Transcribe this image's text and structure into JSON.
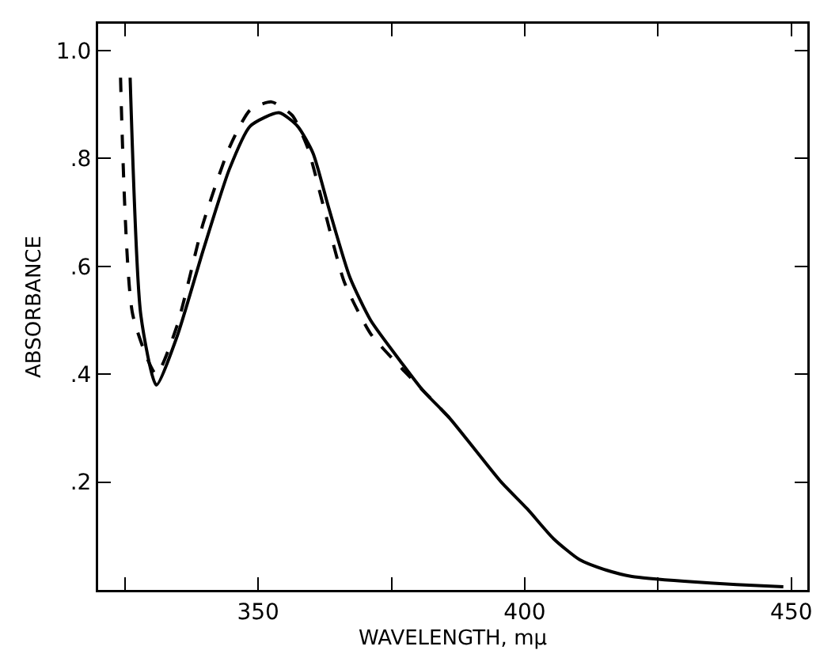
{
  "chart_data": {
    "type": "line",
    "xlabel": "WAVELENGTH, mμ",
    "ylabel": "ABSORBANCE",
    "xlim": [
      320,
      453
    ],
    "xticks": [
      {
        "value": 325,
        "label": null
      },
      350,
      {
        "value": 375,
        "label": null
      },
      400,
      {
        "value": 425,
        "label": null
      },
      450
    ],
    "ylim": [
      0,
      1.05
    ],
    "yticks": [
      {
        "value": 0.2,
        "label": ".2"
      },
      {
        "value": 0.4,
        "label": ".4"
      },
      {
        "value": 0.6,
        "label": ".6"
      },
      {
        "value": 0.8,
        "label": ".8"
      },
      {
        "value": 1.0,
        "label": "1.0"
      }
    ],
    "grid": false,
    "marker": "none",
    "series": [
      {
        "color": "#000000",
        "line_style": "solid",
        "x": [
          326.0,
          328.0,
          330.9,
          334.8,
          339.7,
          344.6,
          348.5,
          353.9,
          357.4,
          360.3,
          363.2,
          367.2,
          371.1,
          377.0,
          380.9,
          385.8,
          390.7,
          395.6,
          400.5,
          405.4,
          410.3,
          415.2,
          420.1,
          429.9,
          439.7,
          448.5
        ],
        "values": [
          0.95,
          0.51,
          0.38,
          0.47,
          0.63,
          0.78,
          0.86,
          0.885,
          0.86,
          0.81,
          0.71,
          0.58,
          0.5,
          0.42,
          0.37,
          0.32,
          0.26,
          0.2,
          0.15,
          0.095,
          0.056,
          0.037,
          0.025,
          0.016,
          0.01,
          0.006
        ]
      },
      {
        "color": "#000000",
        "line_style": "dashed",
        "x": [
          324.2,
          326.5,
          330.9,
          334.8,
          339.7,
          344.6,
          348.5,
          352.5,
          356.4,
          359.3,
          362.3,
          366.2,
          371.1,
          377.0,
          380.9,
          385.8
        ],
        "values": [
          0.95,
          0.51,
          0.4,
          0.49,
          0.68,
          0.82,
          0.89,
          0.905,
          0.88,
          0.82,
          0.71,
          0.57,
          0.475,
          0.41,
          0.37,
          0.32
        ]
      }
    ]
  }
}
